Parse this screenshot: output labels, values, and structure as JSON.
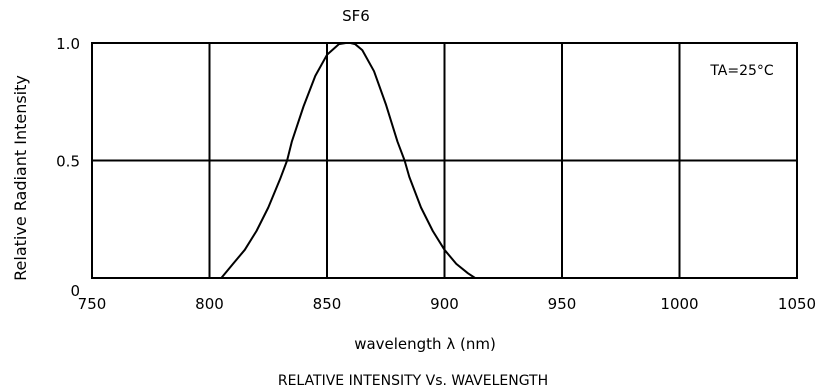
{
  "chart_data": {
    "type": "line",
    "title": "SF6",
    "xlabel": "wavelength λ (nm)",
    "ylabel": "Relative Radiant Intensity",
    "caption": "RELATIVE INTENSITY Vs. WAVELENGTH",
    "annotation": "TA=25°C",
    "xlim": [
      750,
      1050
    ],
    "ylim": [
      0,
      1.0
    ],
    "x_ticks": [
      "750",
      "800",
      "850",
      "900",
      "950",
      "1000",
      "1050"
    ],
    "y_ticks": [
      "0",
      "0.5",
      "1.0"
    ],
    "grid": true,
    "series": [
      {
        "x": [
          805,
          810,
          815,
          820,
          825,
          830,
          833,
          835,
          840,
          845,
          850,
          855,
          858,
          860,
          862,
          865,
          870,
          875,
          880,
          883,
          885,
          890,
          895,
          900,
          905,
          910,
          913
        ],
        "y": [
          0.0,
          0.06,
          0.12,
          0.2,
          0.3,
          0.42,
          0.5,
          0.58,
          0.73,
          0.86,
          0.95,
          0.995,
          1.0,
          1.0,
          0.995,
          0.97,
          0.88,
          0.74,
          0.58,
          0.5,
          0.43,
          0.3,
          0.2,
          0.12,
          0.06,
          0.02,
          0.0
        ]
      }
    ]
  }
}
